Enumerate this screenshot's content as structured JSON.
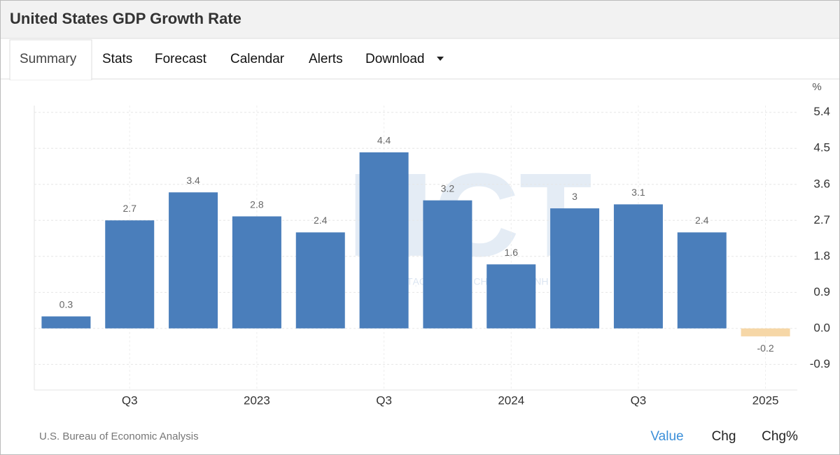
{
  "header": {
    "title": "United States GDP Growth Rate"
  },
  "tabs": [
    "Summary",
    "Stats",
    "Forecast",
    "Calendar",
    "Alerts",
    "Download"
  ],
  "chart_data": {
    "type": "bar",
    "y_unit": "%",
    "categories": [
      null,
      "Q3",
      null,
      "2023",
      null,
      "Q3",
      null,
      "2024",
      null,
      "Q3",
      null,
      "2025"
    ],
    "values": [
      0.3,
      2.7,
      3.4,
      2.8,
      2.4,
      4.4,
      3.2,
      1.6,
      3,
      3.1,
      2.4,
      -0.2
    ],
    "color": "#4a7ebb",
    "negative_color": "#f6d7a7",
    "ylim": [
      -1.54,
      5.57
    ],
    "yticks": [
      -0.9,
      {
        "value": 0,
        "label": "0.0"
      },
      0.9,
      1.8,
      2.7,
      3.6,
      4.5,
      5.4
    ],
    "grid": true
  },
  "watermark": {
    "logo": "HCT",
    "slogan": "KIẾN TẠO GIÁ TRỊ - CHIA SẺ THÀNH CÔNG"
  },
  "footer": {
    "source": "U.S. Bureau of Economic Analysis",
    "buttons": [
      "Value",
      "Chg",
      "Chg%"
    ]
  }
}
